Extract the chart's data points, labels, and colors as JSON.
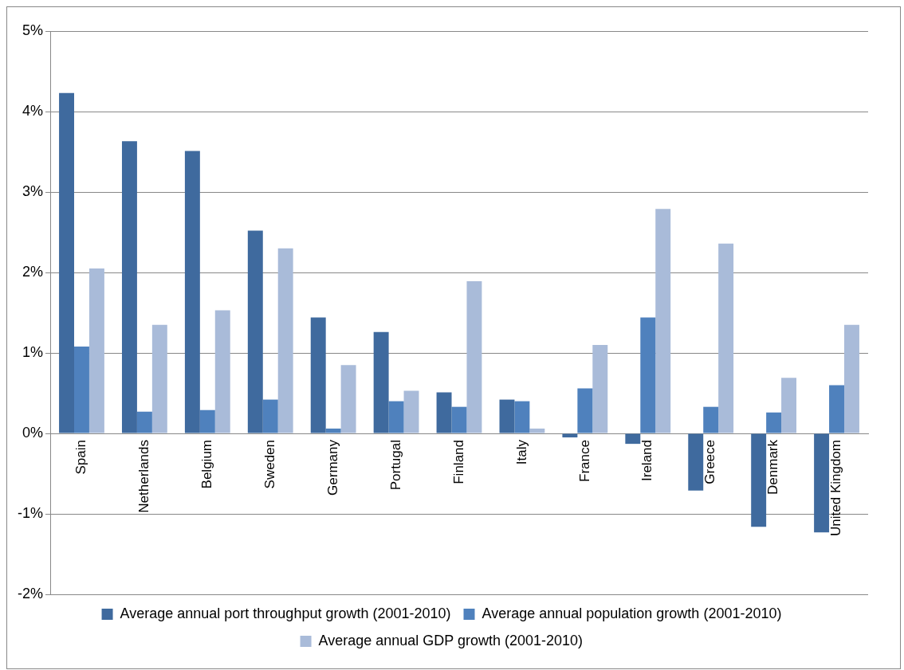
{
  "chart_data": {
    "type": "bar",
    "categories": [
      "Spain",
      "Netherlands",
      "Belgium",
      "Sweden",
      "Germany",
      "Portugal",
      "Finland",
      "Italy",
      "France",
      "Ireland",
      "Greece",
      "Denmark",
      "United Kingdom"
    ],
    "series": [
      {
        "name": "Average annual port throughput growth (2001-2010)",
        "color": "#3f6a9e",
        "values": [
          4.23,
          3.63,
          3.51,
          2.52,
          1.44,
          1.26,
          0.51,
          0.42,
          -0.05,
          -0.13,
          -0.71,
          -1.16,
          -1.23
        ]
      },
      {
        "name": "Average annual population growth (2001-2010)",
        "color": "#4f81bd",
        "values": [
          1.08,
          0.27,
          0.29,
          0.42,
          0.06,
          0.4,
          0.33,
          0.4,
          0.56,
          1.44,
          0.33,
          0.26,
          0.6
        ]
      },
      {
        "name": "Average annual GDP growth (2001-2010)",
        "color": "#a9bbd9",
        "values": [
          2.05,
          1.35,
          1.53,
          2.3,
          0.85,
          0.53,
          1.89,
          0.06,
          1.1,
          2.79,
          2.36,
          0.69,
          1.35
        ]
      }
    ],
    "ylim": [
      -2,
      5
    ],
    "yticks": [
      {
        "value": -2,
        "label": "-2%"
      },
      {
        "value": -1,
        "label": "-1%"
      },
      {
        "value": 0,
        "label": "0%"
      },
      {
        "value": 1,
        "label": "1%"
      },
      {
        "value": 2,
        "label": "2%"
      },
      {
        "value": 3,
        "label": "3%"
      },
      {
        "value": 4,
        "label": "4%"
      },
      {
        "value": 5,
        "label": "5%"
      }
    ],
    "grid": "y",
    "legend": "bottom"
  }
}
